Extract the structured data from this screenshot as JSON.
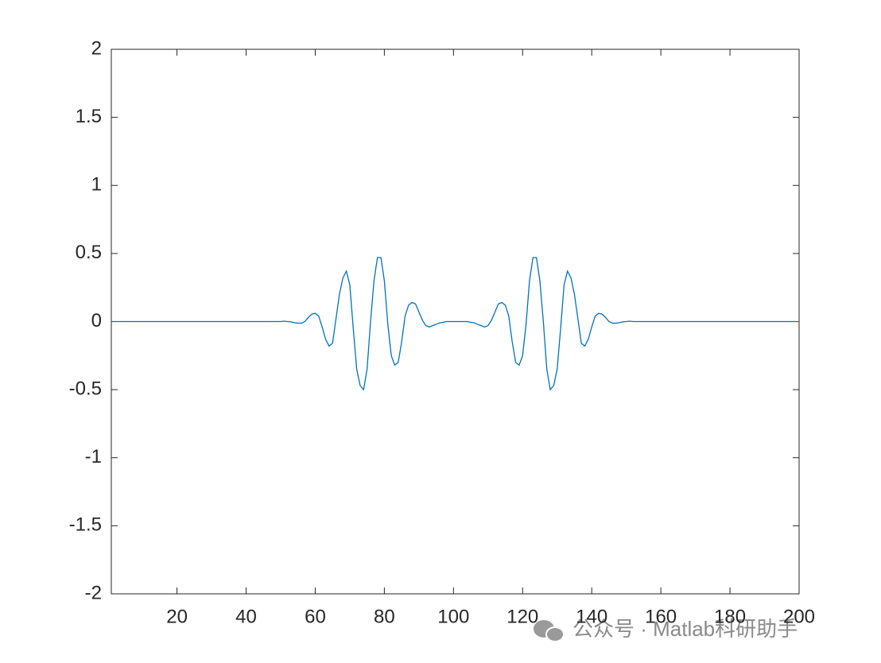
{
  "chart_data": {
    "type": "line",
    "x": [
      1,
      2,
      3,
      4,
      5,
      6,
      7,
      8,
      9,
      10,
      11,
      12,
      13,
      14,
      15,
      16,
      17,
      18,
      19,
      20,
      21,
      22,
      23,
      24,
      25,
      26,
      27,
      28,
      29,
      30,
      31,
      32,
      33,
      34,
      35,
      36,
      37,
      38,
      39,
      40,
      41,
      42,
      43,
      44,
      45,
      46,
      47,
      48,
      49,
      50,
      51,
      52,
      53,
      54,
      55,
      56,
      57,
      58,
      59,
      60,
      61,
      62,
      63,
      64,
      65,
      66,
      67,
      68,
      69,
      70,
      71,
      72,
      73,
      74,
      75,
      76,
      77,
      78,
      79,
      80,
      81,
      82,
      83,
      84,
      85,
      86,
      87,
      88,
      89,
      90,
      91,
      92,
      93,
      94,
      95,
      96,
      97,
      98,
      99,
      100,
      101,
      102,
      103,
      104,
      105,
      106,
      107,
      108,
      109,
      110,
      111,
      112,
      113,
      114,
      115,
      116,
      117,
      118,
      119,
      120,
      121,
      122,
      123,
      124,
      125,
      126,
      127,
      128,
      129,
      130,
      131,
      132,
      133,
      134,
      135,
      136,
      137,
      138,
      139,
      140,
      141,
      142,
      143,
      144,
      145,
      146,
      147,
      148,
      149,
      150,
      151,
      152,
      153,
      154,
      155,
      156,
      157,
      158,
      159,
      160,
      161,
      162,
      163,
      164,
      165,
      166,
      167,
      168,
      169,
      170,
      171,
      172,
      173,
      174,
      175,
      176,
      177,
      178,
      179,
      180,
      181,
      182,
      183,
      184,
      185,
      186,
      187,
      188,
      189,
      190,
      191,
      192,
      193,
      194,
      195,
      196,
      197,
      198,
      199,
      200
    ],
    "series": [
      {
        "color": "#0072bd",
        "values": [
          0,
          0,
          0,
          0,
          0,
          0,
          0,
          0,
          0,
          0,
          0,
          0,
          0,
          0,
          0,
          0,
          0,
          0,
          0,
          0,
          0,
          0,
          0,
          0,
          0,
          0,
          0,
          0,
          0,
          0,
          0,
          0,
          0,
          0,
          0,
          0,
          0,
          0,
          0,
          0,
          0,
          0,
          0,
          0,
          0,
          0,
          0,
          0,
          0,
          0,
          0.003,
          0,
          -0.002,
          -0.008,
          -0.012,
          -0.012,
          0,
          0.03,
          0.055,
          0.06,
          0.04,
          -0.04,
          -0.13,
          -0.18,
          -0.16,
          0.02,
          0.2,
          0.32,
          0.37,
          0.27,
          -0.05,
          -0.35,
          -0.47,
          -0.5,
          -0.35,
          0,
          0.3,
          0.47,
          0.47,
          0.3,
          -0.02,
          -0.25,
          -0.32,
          -0.3,
          -0.15,
          0.04,
          0.12,
          0.14,
          0.13,
          0.07,
          0.01,
          -0.03,
          -0.04,
          -0.03,
          -0.02,
          -0.01,
          -0.005,
          0,
          0,
          0,
          0,
          0,
          0,
          0,
          -0.005,
          -0.01,
          -0.02,
          -0.03,
          -0.04,
          -0.03,
          0.01,
          0.07,
          0.13,
          0.14,
          0.12,
          0.04,
          -0.15,
          -0.3,
          -0.32,
          -0.25,
          -0.02,
          0.3,
          0.47,
          0.47,
          0.3,
          0,
          -0.35,
          -0.5,
          -0.47,
          -0.35,
          -0.05,
          0.27,
          0.37,
          0.32,
          0.2,
          0.02,
          -0.16,
          -0.18,
          -0.13,
          -0.04,
          0.04,
          0.06,
          0.055,
          0.03,
          0,
          -0.012,
          -0.012,
          -0.008,
          -0.002,
          0,
          0.003,
          0,
          0,
          0,
          0,
          0,
          0,
          0,
          0,
          0,
          0,
          0,
          0,
          0,
          0,
          0,
          0,
          0,
          0,
          0,
          0,
          0,
          0,
          0,
          0,
          0,
          0,
          0,
          0,
          0,
          0,
          0,
          0,
          0,
          0,
          0,
          0,
          0,
          0,
          0,
          0,
          0,
          0,
          0,
          0,
          0,
          0,
          0,
          0,
          0
        ]
      }
    ],
    "xlim": [
      1,
      200
    ],
    "xticks": [
      20,
      40,
      60,
      80,
      100,
      120,
      140,
      160,
      180,
      200
    ],
    "ylim": [
      -2,
      2
    ],
    "yticks": [
      -2,
      -1.5,
      -1,
      -0.5,
      0,
      0.5,
      1,
      1.5,
      2
    ],
    "grid": false
  },
  "watermark": "公众号 · Matlab科研助手"
}
